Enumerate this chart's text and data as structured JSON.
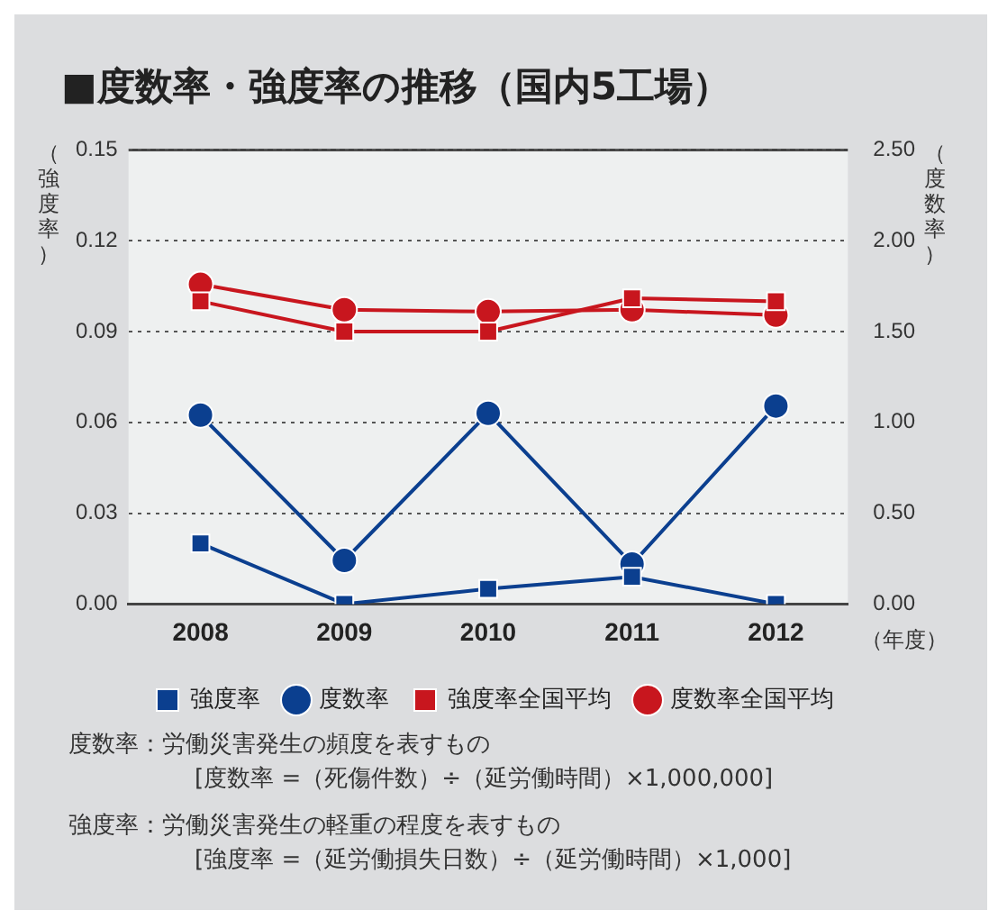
{
  "chart_data": {
    "type": "line",
    "title": "■度数率・強度率の推移（国内5工場）",
    "categories": [
      "2008",
      "2009",
      "2010",
      "2011",
      "2012"
    ],
    "xlabel": "（年度）",
    "ylabel": "（強度率）",
    "y2label": "（度数率）",
    "series": [
      {
        "name": "強度率",
        "color": "#0b3f8f",
        "marker": "square",
        "values": [
          0.02,
          0.0,
          0.005,
          0.009,
          0.0
        ]
      },
      {
        "name": "度数率",
        "color": "#0b3f8f",
        "marker": "circle",
        "axis": "y2",
        "values": [
          1.04,
          0.24,
          1.05,
          0.22,
          1.09
        ]
      },
      {
        "name": "強度率全国平均",
        "color": "#c8161e",
        "marker": "square",
        "values": [
          0.1,
          0.09,
          0.09,
          0.101,
          0.1
        ]
      },
      {
        "name": "度数率全国平均",
        "color": "#c8161e",
        "marker": "circle",
        "axis": "y2",
        "values": [
          1.76,
          1.62,
          1.61,
          1.62,
          1.59
        ]
      }
    ],
    "ylim": [
      0,
      0.15
    ],
    "yticks": [
      {
        "value": 0,
        "label": "0.00"
      },
      {
        "value": 0.03,
        "label": "0.03"
      },
      {
        "value": 0.06,
        "label": "0.06"
      },
      {
        "value": 0.09,
        "label": "0.09"
      },
      {
        "value": 0.12,
        "label": "0.12"
      },
      {
        "value": 0.15,
        "label": "0.15"
      }
    ],
    "y2lim": [
      0,
      2.5
    ],
    "y2ticks": [
      {
        "value": 0,
        "label": "0.00"
      },
      {
        "value": 0.5,
        "label": "0.50"
      },
      {
        "value": 1,
        "label": "1.00"
      },
      {
        "value": 1.5,
        "label": "1.50"
      },
      {
        "value": 2,
        "label": "2.00"
      },
      {
        "value": 2.5,
        "label": "2.50"
      }
    ],
    "grid": "y",
    "legend": "bottom",
    "line_style": "solid",
    "annotations": [
      "度数率：労働災害発生の頻度を表すもの",
      "[度数率 =（死傷件数）÷（延労働時間）×1,000,000]",
      "強度率：労働災害発生の軽重の程度を表すもの",
      "[強度率 =（延労働損失日数）÷（延労働時間）×1,000]"
    ]
  }
}
